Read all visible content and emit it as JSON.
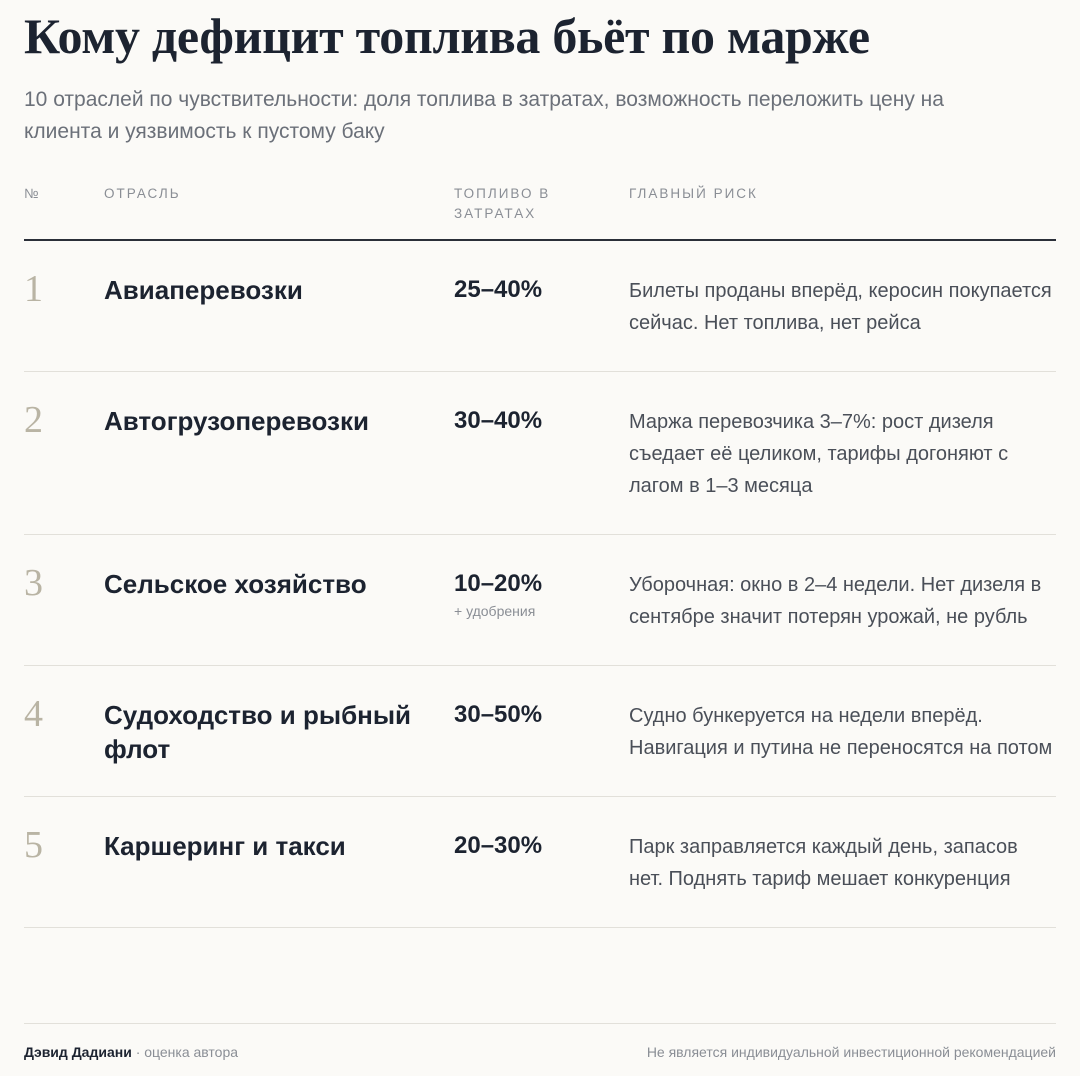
{
  "header": {
    "title": "Кому дефицит топлива бьёт по марже",
    "subtitle": "10 отраслей по чувствительности: доля топлива в затратах, возможность переложить цену на клиента и уязвимость к пустому баку"
  },
  "table": {
    "columns": [
      "№",
      "Отрасль",
      "Топливо в затратах",
      "Главный риск"
    ],
    "rows": [
      {
        "number": 1,
        "industry": "Авиаперевозки",
        "fuel": "25–40%",
        "risk": "Билеты проданы вперёд, керосин покупается сейчас. Нет топлива, нет рейса"
      },
      {
        "number": 2,
        "industry": "Автогрузоперевозки",
        "fuel": "30–40%",
        "risk": "Маржа перевозчика 3–7%: рост дизеля съедает её целиком, тарифы догоняют с лагом в 1–3 месяца"
      },
      {
        "number": 3,
        "industry": "Сельское хозяйство",
        "fuel": "10–20%",
        "fuel_note": "+ удобрения",
        "risk": "Уборочная: окно в 2–4 недели. Нет дизеля в сентябре значит потерян урожай, не рубль"
      },
      {
        "number": 4,
        "industry": "Судоходство и рыбный флот",
        "fuel": "30–50%",
        "risk": "Судно бункеруется на недели вперёд. Навигация и путина не переносятся на потом"
      },
      {
        "number": 5,
        "industry": "Каршеринг и такси",
        "fuel": "20–30%",
        "risk": "Парк заправляется каждый день, запасов нет. Поднять тариф мешает конкуренция"
      }
    ]
  },
  "footer": {
    "author": "Дэвид Дадиани",
    "author_note": "· оценка автора",
    "disclaimer": "Не является индивидуальной инвестиционной рекомендацией"
  }
}
